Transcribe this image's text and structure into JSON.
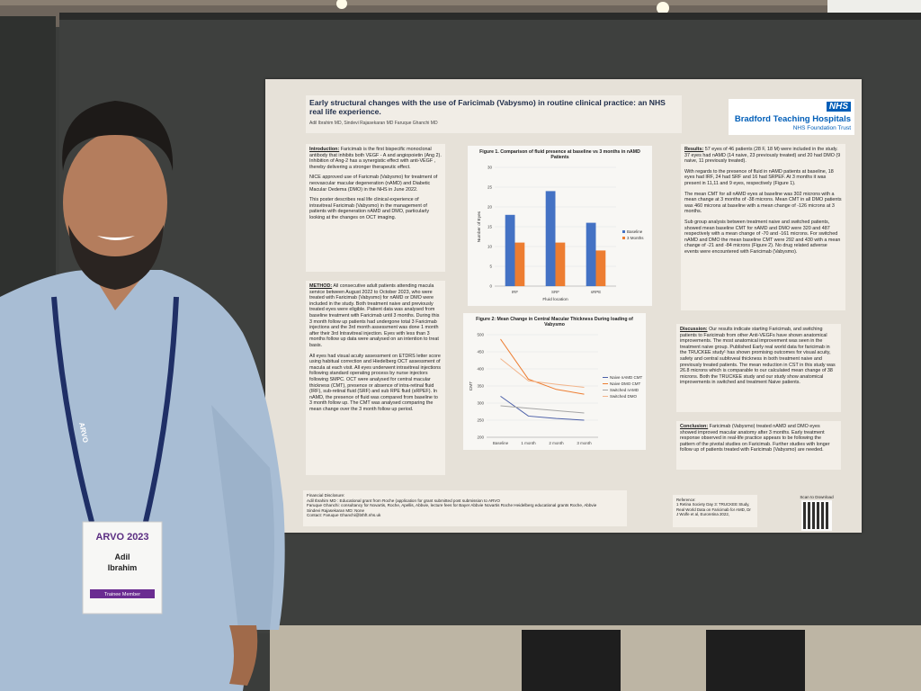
{
  "poster": {
    "title": "Early structural changes with the use of Faricimab (Vabysmo) in routine clinical practice: an NHS real life experience.",
    "authors": "Adil Ibrahim MD, Sindevi Rajasekaran MD Faruque Ghanchi MD",
    "logo": {
      "mark": "NHS",
      "name": "Bradford Teaching Hospitals",
      "trust": "NHS Foundation Trust"
    },
    "introduction": {
      "heading": "Introduction:",
      "paragraphs": [
        "Faricimab is the first bispecific monoclonal antibody that inhibits both VEGF - A and angiopoietin (Ang 2). Inhibition of Ang-2 has a synergistic effect with anti-VEGF , thereby delivering a stronger therapeutic effect.",
        "NICE approved use of Faricmab (Vabysmo) for treatment of neovascular macular degeneration (nAMD) and Diabetic Macular Oedema (DMO) in the NHS in June 2022.",
        "This poster describes real life clinical experience of intravitreal Faricimab (Vabysmo) in the management of patients with degeneration nAMD and DMO, particularly looking at the changes on OCT imaging."
      ]
    },
    "method": {
      "heading": "METHOD:",
      "paragraphs": [
        "All consecutive adult patients attending macula service between August 2022 to October 2023, who were treated with Faricimab (Vabysmo) for nAMD or DMO were included in the study. Both treatment naive and previously treated eyes were eligible. Patient data was analysed from baseline treatment with Faricimab until 3 months. During this 3 month follow up patients had undergone total 3 Faricimab injections and the 3rd month assessment was done 1 month after their 3rd Intravitreal injection. Eyes with less than 3 months follow up data were analysed on an intention to treat basis.",
        "All eyes had visual acuity assessment on ETDRS letter score using habitual correction and Hiedelberg OCT assessment of macula at each visit. All eyes underwent intravitreal injections following standard operating process by nurse injectors following SMPC. OCT were analysed for central macular thickness (CMT), presence or absence of intra-retinal fluid (IRF), sub-retinal fluid (SRF) and sub RPE fluid (sRPEF). In nAMD, the presence of fluid was compared from baseline to 3 month follow up. The CMT was analysed comparing the mean change over the 3 month follow up period."
      ]
    },
    "results": {
      "heading": "Results:",
      "paragraphs": [
        "57 eyes of 46 patients (28 F, 18 M) were included in the study. 37 eyes had nAMD (14 naive, 23 previously treated) and 20 had DMO (9 naive, 11 previously treated).",
        "With regards to the presence of fluid in nAMD patients at baseline, 18 eyes had IRF, 24 had SRF and 16 had SRPEF. At 3 months it was present in 11,11 and 9 eyes, respectively (Figure 1).",
        "The mean CMT for all nAMD eyes at baseline was 302 microns with a mean change at 3 months of -38 microns. Mean CMT in all DMO patients was 460 microns at baseline with a mean change of -126 microns at 3 months.",
        "Sub group analysis between treatment naive and switched patients, showed mean baseline CMT for nAMD and DMO were 320 and 487 respectively with a mean change of -70 and -161 microns. For switched nAMD and DMO the mean baseline CMT were 292 and 430 with a mean change of -21 and -84 microns (Figure 2). No drug related adverse events were encountered with Faricimab (Vabysmo)."
      ]
    },
    "discussion": {
      "heading": "Discussion:",
      "paragraphs": [
        "Our results indicate starting Faricimab, and switching patients to Faricimab from other Anti-VEGFs have shown anatomical improvements. The most anatomical improvement was seen in the treatment naive group. Published Early real world data for faricimab in the TRUCKEE study¹ has shown promising outcomes for visual acuity, safety and central subfoveal thickness in both treatment naive and previously treated patients. The mean reduction in CST in this study was 26.8 microns which is comparable to our calculated mean change of 38 microns. Both the TRUCKEE study and our study show anatomical improvements in switched and treatment Naive patients."
      ]
    },
    "conclusion": {
      "heading": "Conclusion:",
      "paragraphs": [
        "Faricimab (Vabysmo) treated nAMD and DMO eyes showed improved macular anatomy after 3 months. Early treatment response observed in real-life practice appears to be following the pattern of the pivotal studies on Faricimab. Further studies with longer follow up of patients treated with Faricimab (Vabysmo) are needed."
      ]
    },
    "financial": {
      "heading": "Financial Disclosure:",
      "lines": [
        "Adil Ibrahim MD : Educational grant from Roche (application for grant submitted post submission to ARVO",
        "Faruque Ghanchi: consultancy for Novartis, Roche, Apellis, Abbvie, lecture fees for Bayer Abbvie Novartis Roche Heidelberg educational grants Roche, Abbvie",
        "Sindevi Rajasekaran MD: None",
        "Contact: Faruque Ghanchi@bthft.nhs.uk"
      ]
    },
    "reference": {
      "heading": "Reference:",
      "text": "1 Retina Society Day 3: TRUCKEE Study, Real World Data on Faricimab for AMD, Dr J Wolfe et al, Euroretina 2022,"
    },
    "scan": "Scan to Download",
    "figure1": {
      "type": "bar",
      "title": "Figure 1. Comparison of fluid presence at baseline vs 3 months in nAMD Patients",
      "x_label": "Fluid location",
      "y_label": "Number of Eyes",
      "categories": [
        "IRF",
        "SRF",
        "sRPE"
      ],
      "series": [
        {
          "name": "Baseline",
          "color": "#4472c4",
          "values": [
            18,
            24,
            16
          ]
        },
        {
          "name": "3 Months",
          "color": "#ed7d31",
          "values": [
            11,
            11,
            9
          ]
        }
      ],
      "ylim": [
        0,
        30
      ],
      "yticks": [
        0,
        5,
        10,
        15,
        20,
        25,
        30
      ]
    },
    "figure2": {
      "type": "line",
      "title": "Figure 2: Mean Change in Central Macular Thickness During loading of Vabysmo",
      "y_label": "CMT",
      "categories": [
        "Baseline",
        "1 month",
        "2 month",
        "3 month"
      ],
      "series": [
        {
          "name": "Naive nAMD CMT",
          "color": "#4b5fa8",
          "values": [
            320,
            262,
            255,
            250
          ]
        },
        {
          "name": "Naive DMO CMT",
          "color": "#ed7d31",
          "values": [
            487,
            370,
            340,
            326
          ]
        },
        {
          "name": "Switched nAMD",
          "color": "#a5a5a5",
          "values": [
            292,
            285,
            278,
            271
          ]
        },
        {
          "name": "Switched DMO",
          "color": "#f2b48a",
          "values": [
            430,
            365,
            355,
            346
          ]
        }
      ],
      "ylim": [
        200,
        500
      ],
      "yticks": [
        200,
        250,
        300,
        350,
        400,
        450,
        500
      ]
    }
  },
  "badge": {
    "event": "ARVO 2023",
    "first_name": "Adil",
    "last_name": "Ibrahim",
    "role": "Trainee Member",
    "lanyard": "ARVO"
  }
}
